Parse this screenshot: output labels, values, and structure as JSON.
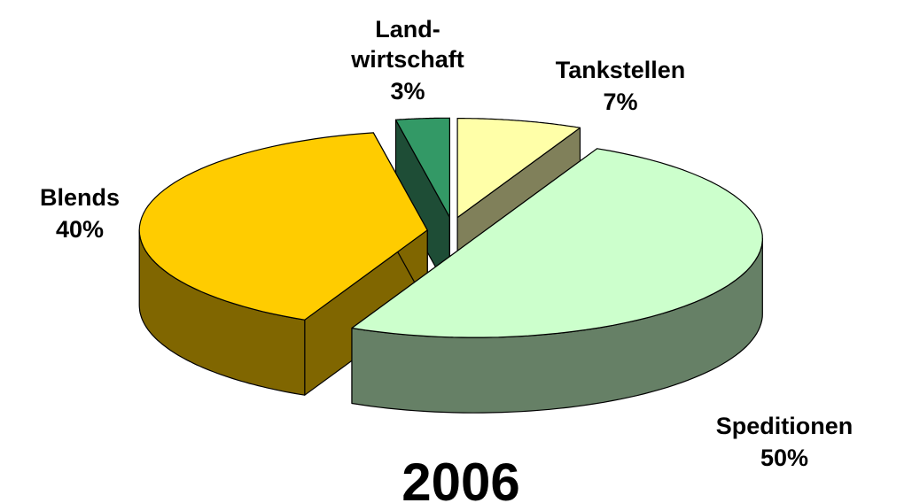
{
  "chart_data": {
    "type": "pie",
    "title": "2006",
    "categories": [
      "Blends",
      "Land-\nwirtschaft",
      "Tankstellen",
      "Speditionen"
    ],
    "values": [
      40,
      3,
      7,
      50
    ],
    "value_labels": [
      "40%",
      "3%",
      "7%",
      "50%"
    ],
    "colors": [
      "#ffcc00",
      "#339966",
      "#ffffa8",
      "#ccffcc"
    ],
    "side_colors": [
      "#806600",
      "#1e4d36",
      "#80805a",
      "#668066"
    ]
  }
}
